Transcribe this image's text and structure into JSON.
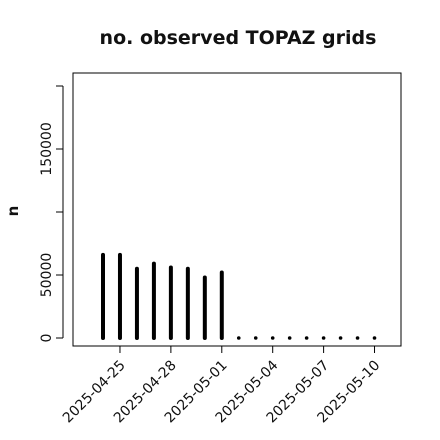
{
  "chart_data": {
    "type": "bar",
    "title": "no. observed TOPAZ grids",
    "xlabel": "",
    "ylabel": "n",
    "ylim": [
      0,
      200000
    ],
    "y_ticks": [
      0,
      50000,
      150000
    ],
    "x": [
      "2025-04-24",
      "2025-04-25",
      "2025-04-26",
      "2025-04-27",
      "2025-04-28",
      "2025-04-29",
      "2025-04-30",
      "2025-05-01",
      "2025-05-02",
      "2025-05-03",
      "2025-05-04",
      "2025-05-05",
      "2025-05-06",
      "2025-05-07",
      "2025-05-08",
      "2025-05-09",
      "2025-05-10"
    ],
    "values": [
      66000,
      66000,
      55000,
      59000,
      56000,
      55000,
      48000,
      52000,
      0,
      0,
      0,
      0,
      0,
      0,
      0,
      0,
      0
    ],
    "x_tick_labels": [
      {
        "date": "2025-04-25",
        "label": "2025-04-25",
        "color": "#000000"
      },
      {
        "date": "2025-04-28",
        "label": "2025-04-28",
        "color": "#000000"
      },
      {
        "date": "2025-05-01",
        "label": "2025-05-01",
        "color": "#228B22"
      },
      {
        "date": "2025-05-04",
        "label": "2025-05-04",
        "color": "#000000"
      },
      {
        "date": "2025-05-07",
        "label": "2025-05-07",
        "color": "#000000"
      },
      {
        "date": "2025-05-10",
        "label": "2025-05-10",
        "color": "#000000"
      }
    ],
    "grid": false,
    "colors": {
      "bars": "#000000",
      "highlight": "#228B22"
    }
  }
}
